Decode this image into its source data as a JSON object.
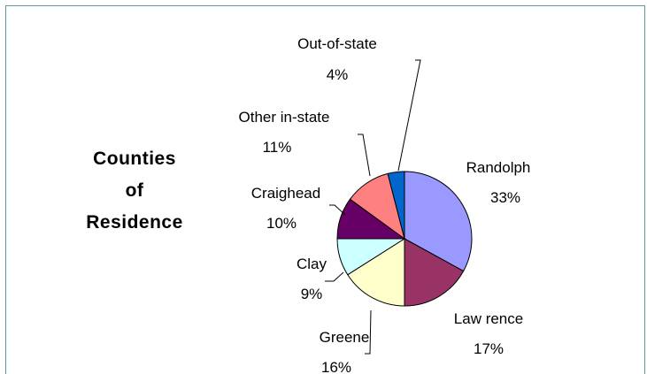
{
  "chart_data": {
    "type": "pie",
    "title": "Counties\nof\nResidence",
    "categories": [
      "Randolph",
      "Law rence",
      "Greene",
      "Clay",
      "Craighead",
      "Other in-state",
      "Out-of-state"
    ],
    "values": [
      33,
      17,
      16,
      9,
      10,
      11,
      4
    ],
    "value_labels": [
      "33%",
      "17%",
      "16%",
      "9%",
      "10%",
      "11%",
      "4%"
    ],
    "colors": [
      "#9999ff",
      "#993366",
      "#ffffcc",
      "#ccffff",
      "#660066",
      "#ff8080",
      "#0066cc"
    ],
    "start_angle_deg": 0,
    "direction": "clockwise",
    "legend": "none"
  }
}
